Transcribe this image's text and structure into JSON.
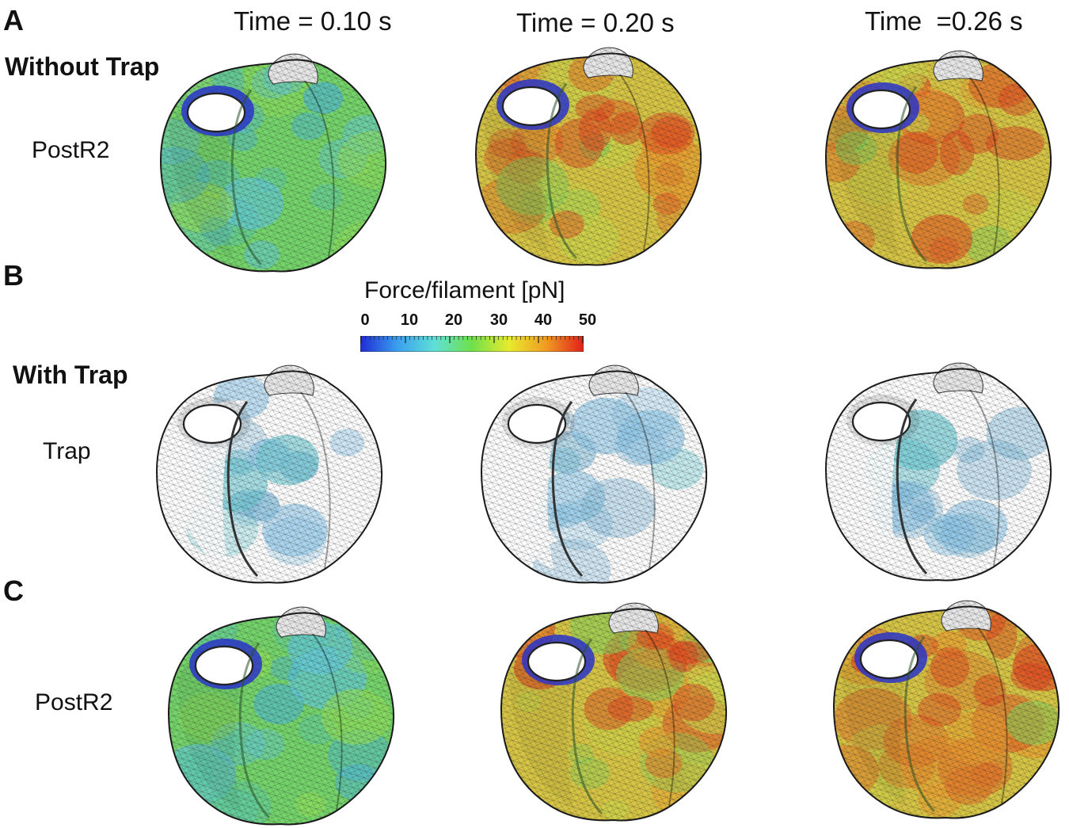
{
  "panels": {
    "a": "A",
    "b": "B",
    "c": "C"
  },
  "times": [
    "Time = 0.10 s",
    "Time = 0.20 s",
    "Time  =0.26 s"
  ],
  "groups": {
    "without": "Without Trap",
    "with": "With Trap"
  },
  "rows": {
    "a": "PostR2",
    "b": "Trap",
    "c": "PostR2"
  },
  "colorbar": {
    "title": "Force/filament [pN]",
    "ticks": [
      "0",
      "10",
      "20",
      "30",
      "40",
      "50"
    ],
    "range": [
      0,
      50
    ],
    "colors": [
      "#1f2bd6",
      "#3aa0ee",
      "#5fe0d6",
      "#6fe04a",
      "#e8ea2e",
      "#f09a22",
      "#e0201a"
    ]
  },
  "hearts": [
    {
      "row": "A",
      "time": "0.10 s",
      "level": 0.3,
      "palette": "green"
    },
    {
      "row": "A",
      "time": "0.20 s",
      "level": 0.65,
      "palette": "hot"
    },
    {
      "row": "A",
      "time": "0.26 s",
      "level": 0.75,
      "palette": "hot"
    },
    {
      "row": "B",
      "time": "0.10 s",
      "level": 0.2,
      "palette": "trap"
    },
    {
      "row": "B",
      "time": "0.20 s",
      "level": 0.2,
      "palette": "trap"
    },
    {
      "row": "B",
      "time": "0.26 s",
      "level": 0.25,
      "palette": "trap"
    },
    {
      "row": "C",
      "time": "0.10 s",
      "level": 0.3,
      "palette": "green"
    },
    {
      "row": "C",
      "time": "0.20 s",
      "level": 0.75,
      "palette": "hot"
    },
    {
      "row": "C",
      "time": "0.26 s",
      "level": 0.85,
      "palette": "hot"
    }
  ]
}
